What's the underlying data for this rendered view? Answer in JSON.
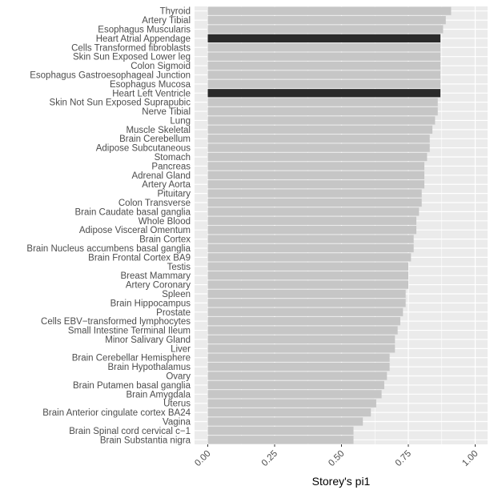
{
  "chart_data": {
    "type": "bar",
    "orientation": "horizontal",
    "xlabel": "Storey's pi1",
    "ylabel": "",
    "xlim": [
      0,
      1.05
    ],
    "xticks": [
      0.0,
      0.25,
      0.5,
      0.75,
      1.0
    ],
    "xtick_labels": [
      "0.00",
      "0.25",
      "0.50",
      "0.75",
      "1.00"
    ],
    "grid": true,
    "colors": {
      "panel_background": "#ebebeb",
      "grid": "#ffffff",
      "bar_default": "#c6c6c6",
      "bar_highlight": "#2a2a2a"
    },
    "categories": [
      "Thyroid",
      "Artery Tibial",
      "Esophagus Muscularis",
      "Heart Atrial Appendage",
      "Cells Transformed fibroblasts",
      "Skin Sun Exposed Lower leg",
      "Colon Sigmoid",
      "Esophagus Gastroesophageal Junction",
      "Esophagus Mucosa",
      "Heart Left Ventricle",
      "Skin Not Sun Exposed Suprapubic",
      "Nerve Tibial",
      "Lung",
      "Muscle Skeletal",
      "Brain Cerebellum",
      "Adipose Subcutaneous",
      "Stomach",
      "Pancreas",
      "Adrenal Gland",
      "Artery Aorta",
      "Pituitary",
      "Colon Transverse",
      "Brain Caudate basal ganglia",
      "Whole Blood",
      "Adipose Visceral Omentum",
      "Brain Cortex",
      "Brain Nucleus accumbens basal ganglia",
      "Brain Frontal Cortex BA9",
      "Testis",
      "Breast Mammary",
      "Artery Coronary",
      "Spleen",
      "Brain Hippocampus",
      "Prostate",
      "Cells EBV−transformed lymphocytes",
      "Small Intestine Terminal Ileum",
      "Minor Salivary Gland",
      "Liver",
      "Brain Cerebellar Hemisphere",
      "Brain Hypothalamus",
      "Ovary",
      "Brain Putamen basal ganglia",
      "Brain Amygdala",
      "Uterus",
      "Brain Anterior cingulate cortex BA24",
      "Vagina",
      "Brain Spinal cord cervical c−1",
      "Brain Substantia nigra"
    ],
    "values": [
      0.91,
      0.89,
      0.88,
      0.87,
      0.87,
      0.87,
      0.87,
      0.87,
      0.87,
      0.87,
      0.86,
      0.86,
      0.85,
      0.84,
      0.83,
      0.83,
      0.82,
      0.81,
      0.81,
      0.81,
      0.8,
      0.8,
      0.79,
      0.78,
      0.78,
      0.77,
      0.77,
      0.76,
      0.75,
      0.75,
      0.75,
      0.74,
      0.74,
      0.73,
      0.72,
      0.71,
      0.7,
      0.7,
      0.68,
      0.68,
      0.67,
      0.66,
      0.65,
      0.63,
      0.61,
      0.58,
      0.545,
      0.545
    ],
    "highlighted": [
      "Heart Atrial Appendage",
      "Heart Left Ventricle"
    ]
  }
}
